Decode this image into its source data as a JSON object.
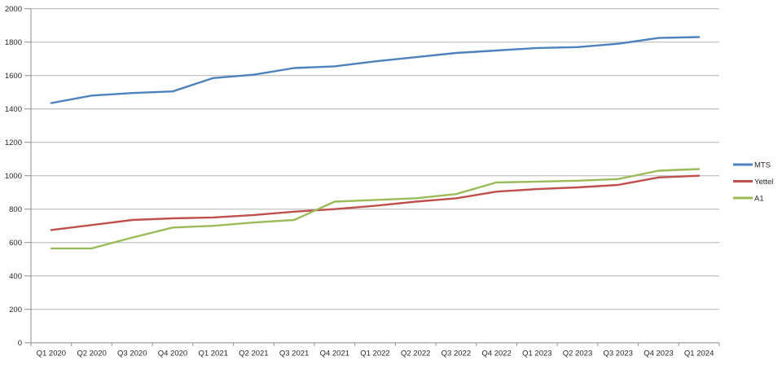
{
  "chart_data": {
    "type": "line",
    "title": "",
    "xlabel": "",
    "ylabel": "",
    "categories": [
      "Q1 2020",
      "Q2 2020",
      "Q3 2020",
      "Q4 2020",
      "Q1 2021",
      "Q2 2021",
      "Q3 2021",
      "Q4 2021",
      "Q1 2022",
      "Q2 2022",
      "Q3 2022",
      "Q4 2022",
      "Q1 2023",
      "Q2 2023",
      "Q3 2023",
      "Q4 2023",
      "Q1 2024"
    ],
    "series": [
      {
        "name": "MTS",
        "color": "#4F81BD",
        "values": [
          1435,
          1480,
          1495,
          1505,
          1585,
          1605,
          1645,
          1655,
          1685,
          1710,
          1735,
          1750,
          1765,
          1770,
          1790,
          1825,
          1830
        ]
      },
      {
        "name": "Yettel",
        "color": "#C0504D",
        "values": [
          675,
          705,
          735,
          745,
          750,
          765,
          785,
          800,
          820,
          845,
          865,
          905,
          920,
          930,
          945,
          990,
          1000
        ]
      },
      {
        "name": "A1",
        "color": "#9BBB59",
        "values": [
          565,
          565,
          630,
          690,
          700,
          720,
          735,
          845,
          855,
          865,
          890,
          960,
          965,
          970,
          980,
          1030,
          1040
        ]
      }
    ],
    "ylim": [
      0,
      2000
    ],
    "ytick_step": 200,
    "yticks": [
      0,
      200,
      400,
      600,
      800,
      1000,
      1200,
      1400,
      1600,
      1800,
      2000
    ],
    "grid": "horizontal",
    "legend_position": "right",
    "legend_labels": [
      "MTS",
      "Yettel",
      "A1"
    ]
  },
  "colors": {
    "background": "#FFFFFF",
    "gridline": "#B3B3B3",
    "axis": "#8E8E8E",
    "tick_text": "#262626",
    "mts": "#4F81BD",
    "yettel": "#C0504D",
    "a1": "#9BBB59"
  }
}
